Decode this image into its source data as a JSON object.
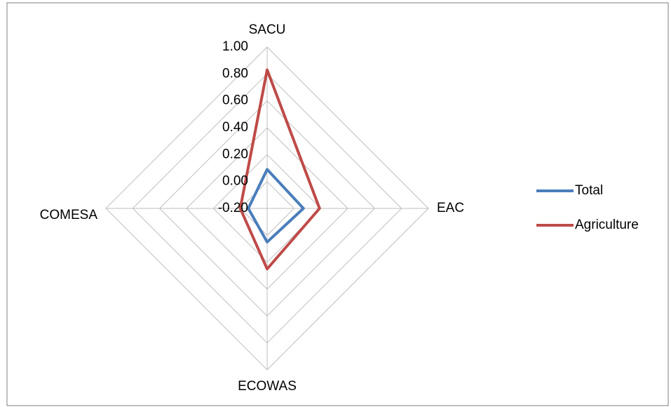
{
  "chart_data": {
    "type": "radar",
    "categories": [
      "SACU",
      "EAC",
      "ECOWAS",
      "COMESA"
    ],
    "series": [
      {
        "name": "Total",
        "color": "#4a7ebb",
        "values": [
          0.09,
          0.07,
          0.05,
          -0.06
        ]
      },
      {
        "name": "Agriculture",
        "color": "#be4b48",
        "values": [
          0.83,
          0.19,
          0.25,
          0.0
        ]
      }
    ],
    "rlim": [
      -0.2,
      1.0
    ],
    "rticks": [
      {
        "value": -0.2,
        "label": "-0.20"
      },
      {
        "value": 0,
        "label": "0.00"
      },
      {
        "value": 0.2,
        "label": "0.20"
      },
      {
        "value": 0.4,
        "label": "0.40"
      },
      {
        "value": 0.6,
        "label": "0.60"
      },
      {
        "value": 0.8,
        "label": "0.80"
      },
      {
        "value": 1.0,
        "label": "1.00"
      }
    ],
    "grid": true,
    "legend": "right"
  }
}
